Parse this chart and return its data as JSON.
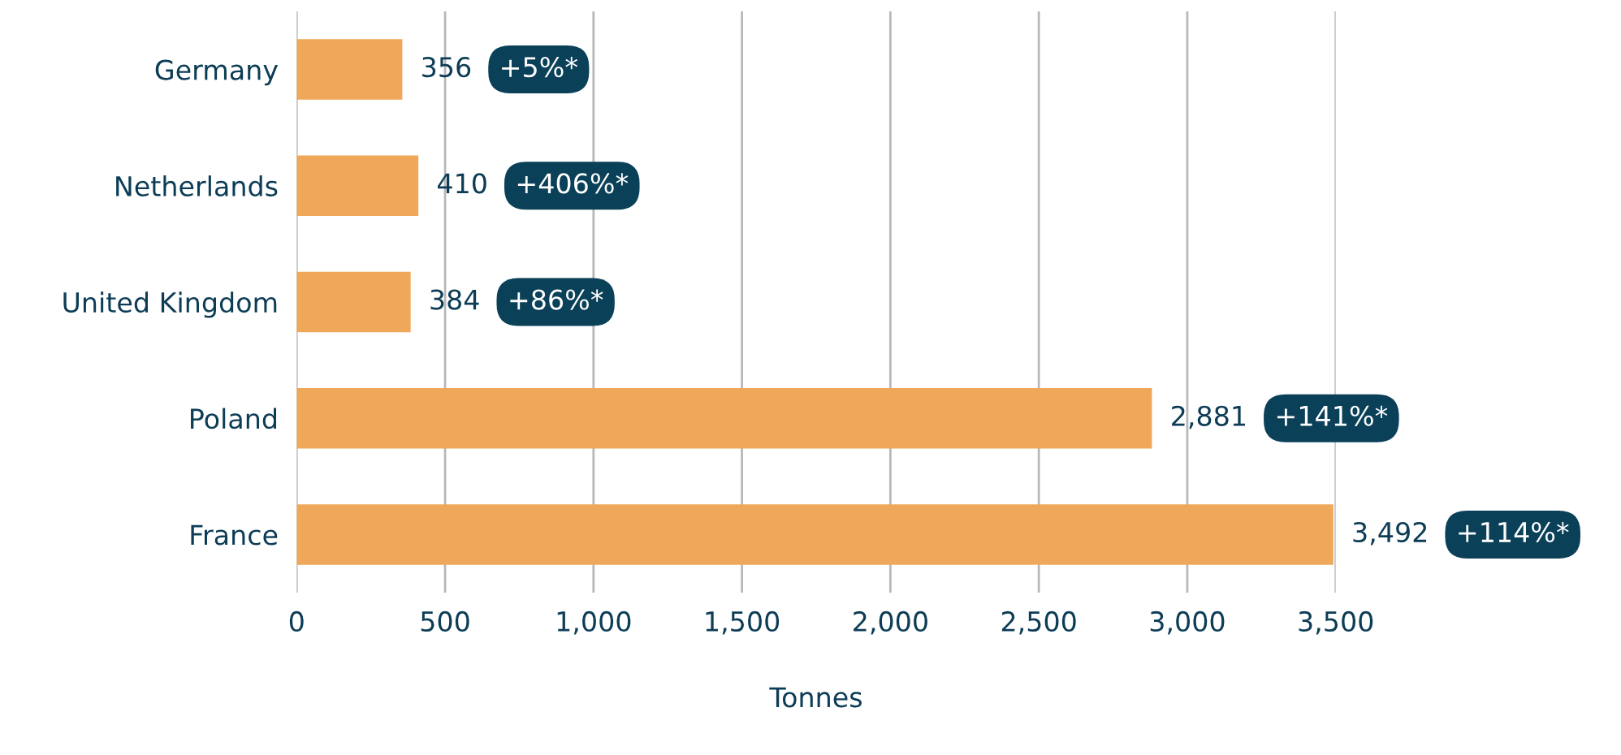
{
  "chart_data": {
    "type": "bar",
    "orientation": "horizontal",
    "xlabel": "Tonnes",
    "categories": [
      "Germany",
      "Netherlands",
      "United Kingdom",
      "Poland",
      "France"
    ],
    "values": [
      356,
      410,
      384,
      2881,
      3492
    ],
    "color": "#efa85a",
    "value_labels": [
      "356",
      "410",
      "384",
      "2,881",
      "3,492"
    ],
    "annotations": [
      "+5%*",
      "+406%*",
      "+86%*",
      "+141%*",
      "+114%*"
    ],
    "xlim": [
      0,
      3500
    ],
    "xticks": [
      0,
      500,
      {
        "value": 1000,
        "label": "1,000"
      },
      {
        "value": 1500,
        "label": "1,500"
      },
      {
        "value": 2000,
        "label": "2,000"
      },
      {
        "value": 2500,
        "label": "2,500"
      },
      {
        "value": 3000,
        "label": "3,000"
      },
      {
        "value": 3500,
        "label": "3,500"
      }
    ],
    "grid": "x",
    "legend": false
  }
}
